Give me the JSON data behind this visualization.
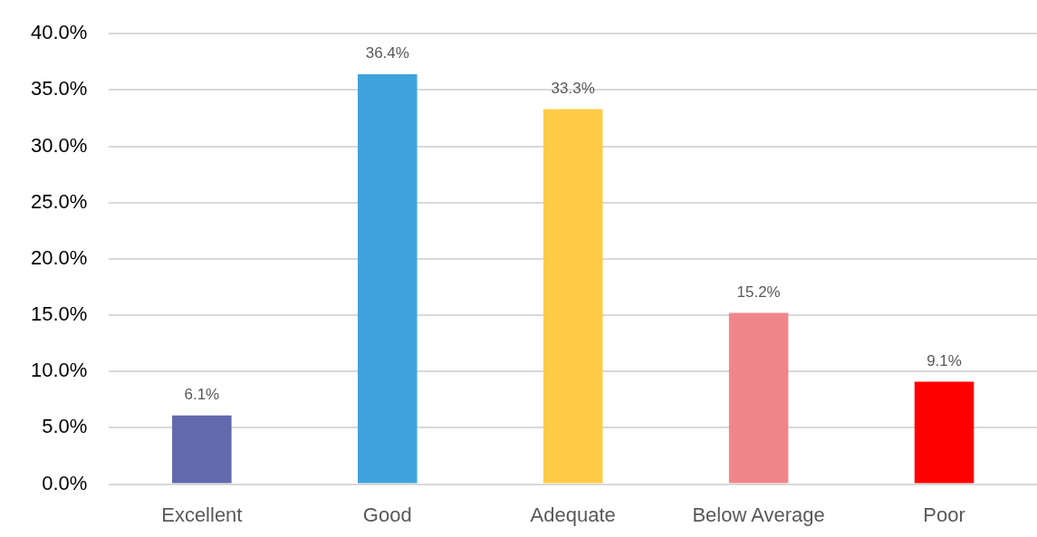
{
  "chart_data": {
    "type": "bar",
    "categories": [
      "Excellent",
      "Good",
      "Adequate",
      "Below Average",
      "Poor"
    ],
    "values": [
      6.1,
      36.4,
      33.3,
      15.2,
      9.1
    ],
    "colors": [
      "#6469ae",
      "#3fa2dc",
      "#ffcc47",
      "#f0868a",
      "#ff0000"
    ],
    "value_labels": [
      "6.1%",
      "36.4%",
      "33.3%",
      "15.2%",
      "9.1%"
    ],
    "ylim": [
      0,
      40
    ],
    "yticks": [
      {
        "value": 0,
        "label": "0.0%"
      },
      {
        "value": 5,
        "label": "5.0%"
      },
      {
        "value": 10,
        "label": "10.0%"
      },
      {
        "value": 15,
        "label": "15.0%"
      },
      {
        "value": 20,
        "label": "20.0%"
      },
      {
        "value": 25,
        "label": "25.0%"
      },
      {
        "value": 30,
        "label": "30.0%"
      },
      {
        "value": 35,
        "label": "35.0%"
      },
      {
        "value": 40,
        "label": "40.0%"
      }
    ],
    "grid": "y",
    "legend": false
  }
}
